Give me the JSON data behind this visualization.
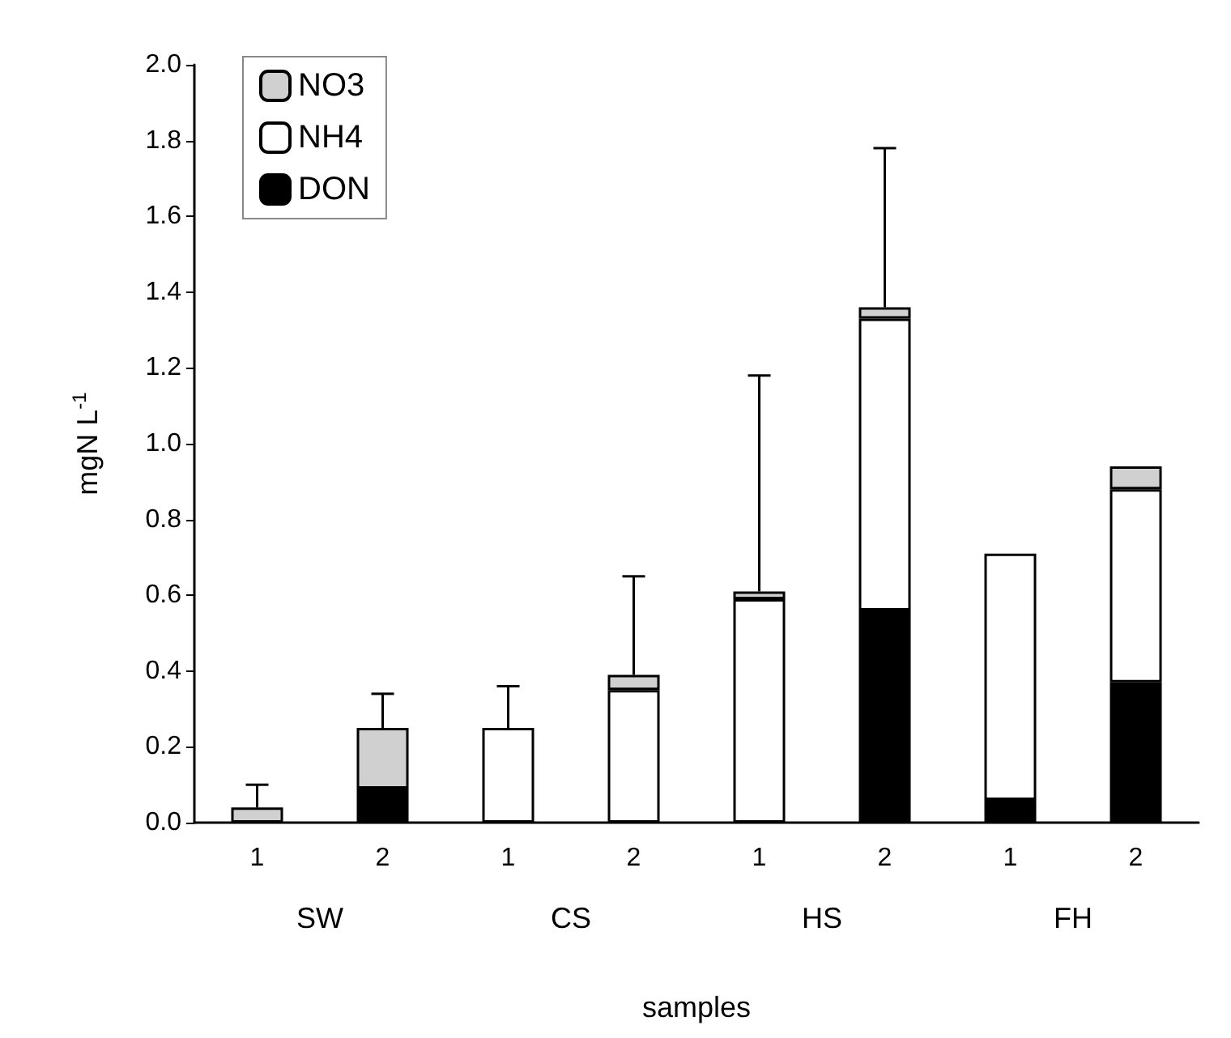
{
  "chart_data": {
    "type": "bar",
    "stacked": true,
    "categories": [
      "1",
      "2",
      "1",
      "2",
      "1",
      "2",
      "1",
      "2"
    ],
    "annotations": [
      "SW",
      "CS",
      "HS",
      "FH"
    ],
    "xlabel": "samples",
    "ylabel": "mgN L$^{-1}$",
    "ylim": [
      0,
      2
    ],
    "yticks": [
      {
        "value": 0,
        "label": "0.0"
      },
      {
        "value": 0.2,
        "label": "0.2"
      },
      {
        "value": 0.4,
        "label": "0.4"
      },
      {
        "value": 0.6,
        "label": "0.6"
      },
      {
        "value": 0.8,
        "label": "0.8"
      },
      {
        "value": 1,
        "label": "1.0"
      },
      {
        "value": 1.2,
        "label": "1.2"
      },
      {
        "value": 1.4,
        "label": "1.4"
      },
      {
        "value": 1.6,
        "label": "1.6"
      },
      {
        "value": 1.8,
        "label": "1.8"
      },
      {
        "value": 2,
        "label": "2.0"
      }
    ],
    "series": [
      {
        "name": "DON",
        "color": "#000000",
        "values": [
          null,
          0.09,
          null,
          null,
          null,
          0.56,
          0.06,
          0.37
        ]
      },
      {
        "name": "NH4",
        "color": "#ffffff",
        "values": [
          null,
          null,
          0.25,
          0.35,
          0.59,
          0.77,
          0.65,
          0.51
        ],
        "errors": [
          null,
          null,
          [
            0.25,
            0.36
          ],
          null,
          null,
          null,
          null,
          null
        ]
      },
      {
        "name": "NO3",
        "color": "#d0d0d0",
        "values": [
          0.04,
          0.16,
          null,
          0.04,
          0.02,
          0.03,
          null,
          0.06
        ],
        "errors": [
          [
            0.04,
            0.1
          ],
          [
            0.25,
            0.34
          ],
          null,
          [
            0.39,
            0.65
          ],
          [
            0.61,
            1.18
          ],
          [
            1.36,
            1.78
          ],
          null,
          null
        ]
      }
    ],
    "legend": "top left",
    "grid": false
  }
}
